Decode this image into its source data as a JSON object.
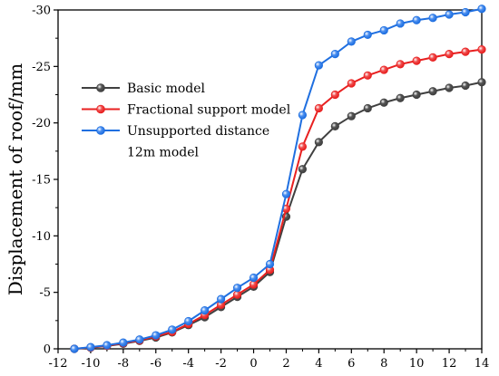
{
  "chart_data": {
    "type": "line",
    "title": "",
    "xlabel": "",
    "ylabel": "Displacement of roof/mm",
    "xlim": [
      -12,
      14
    ],
    "ylim": [
      0,
      -30
    ],
    "y_axis_inverted": true,
    "x_ticks": [
      -12,
      -10,
      -8,
      -6,
      -4,
      -2,
      0,
      2,
      4,
      6,
      8,
      10,
      12,
      14
    ],
    "y_ticks": [
      0,
      -5,
      -10,
      -15,
      -20,
      -25,
      -30
    ],
    "grid": false,
    "legend_position": "upper-left",
    "x": [
      -11,
      -10,
      -9,
      -8,
      -7,
      -6,
      -5,
      -4,
      -3,
      -2,
      -1,
      0,
      1,
      2,
      3,
      4,
      5,
      6,
      7,
      8,
      9,
      10,
      11,
      12,
      13,
      14
    ],
    "series": [
      {
        "name": "Basic model",
        "color": "#404040",
        "marker_color": "#555555",
        "values": [
          0,
          -0.1,
          -0.25,
          -0.45,
          -0.7,
          -1.0,
          -1.45,
          -2.1,
          -2.8,
          -3.7,
          -4.6,
          -5.5,
          -6.8,
          -11.7,
          -15.9,
          -18.3,
          -19.7,
          -20.6,
          -21.3,
          -21.8,
          -22.2,
          -22.5,
          -22.8,
          -23.1,
          -23.3,
          -23.6
        ]
      },
      {
        "name": "Fractional support model",
        "color": "#e82020",
        "marker_color": "#f05050",
        "values": [
          0,
          -0.12,
          -0.28,
          -0.5,
          -0.75,
          -1.1,
          -1.5,
          -2.2,
          -3.0,
          -3.9,
          -4.8,
          -5.7,
          -7.0,
          -12.4,
          -17.9,
          -21.3,
          -22.5,
          -23.5,
          -24.2,
          -24.7,
          -25.2,
          -25.5,
          -25.8,
          -26.1,
          -26.3,
          -26.5
        ]
      },
      {
        "name": "Unsupported distance 12m model",
        "legend_lines": [
          "Unsupported distance",
          "12m model"
        ],
        "color": "#1f6fe0",
        "marker_color": "#4b8ff0",
        "values": [
          0,
          -0.15,
          -0.32,
          -0.55,
          -0.82,
          -1.2,
          -1.7,
          -2.45,
          -3.4,
          -4.4,
          -5.4,
          -6.3,
          -7.5,
          -13.7,
          -20.7,
          -25.1,
          -26.1,
          -27.2,
          -27.8,
          -28.2,
          -28.8,
          -29.1,
          -29.3,
          -29.6,
          -29.8,
          -30.1
        ]
      }
    ]
  }
}
